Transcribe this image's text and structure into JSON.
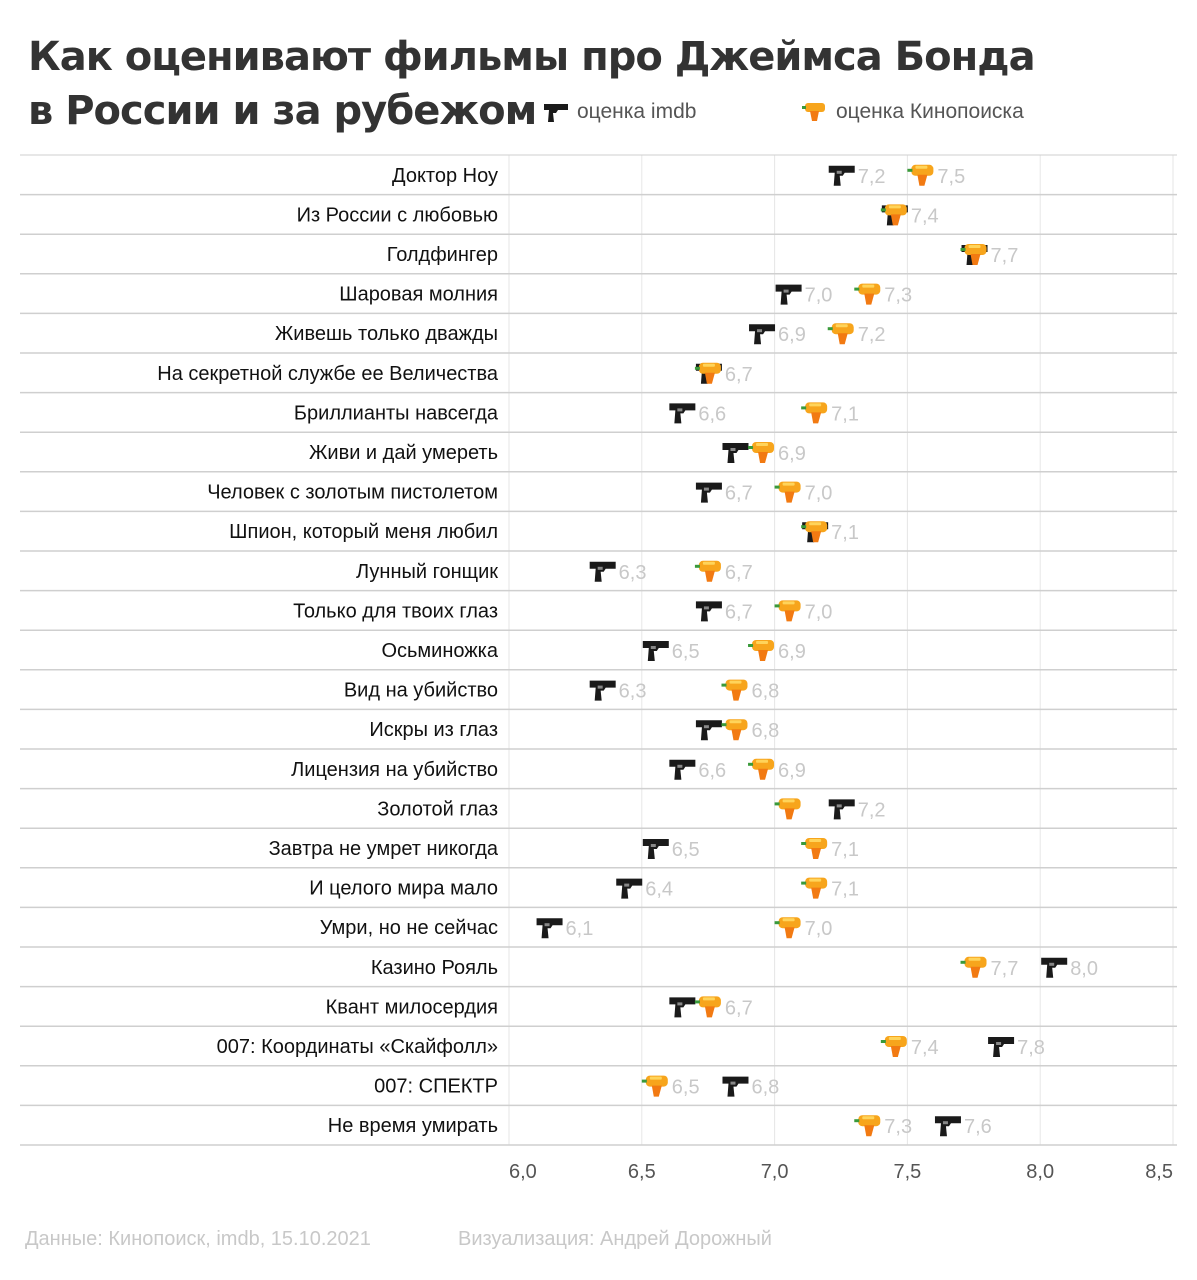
{
  "title_line1": "Как оценивают фильмы про Джеймса Бонда",
  "title_line2": "в России и за рубежом",
  "legend": {
    "imdb": "оценка imdb",
    "kp": "оценка Кинопоиска"
  },
  "footer": {
    "source": "Данные:  Кинопоиск, imdb, 15.10.2021",
    "author": "Визуализация: Андрей Дорожный"
  },
  "colors": {
    "imdb": "#1a1a1a",
    "kp": "#f7a51c",
    "label": "#c8c8c8",
    "grid": "#e6e6e6",
    "rowline": "#cfcfcf"
  },
  "chart_data": {
    "type": "dot",
    "xlim": [
      6.0,
      8.5
    ],
    "ticks": [
      "6,0",
      "6,5",
      "7,0",
      "7,5",
      "8,0",
      "8,5"
    ],
    "tick_values": [
      6.0,
      6.5,
      7.0,
      7.5,
      8.0,
      8.5
    ],
    "grid": true,
    "series": [
      {
        "name": "оценка imdb",
        "key": "imdb",
        "icon": "pistol-icon"
      },
      {
        "name": "оценка Кинопоиска",
        "key": "kp",
        "icon": "water-pistol-icon"
      }
    ],
    "categories": [
      "Доктор Ноу",
      "Из России с любовью",
      "Голдфингер",
      "Шаровая молния",
      "Живешь только дважды",
      "На секретной службе ее Величества",
      "Бриллианты навсегда",
      "Живи и дай умереть",
      "Человек с золотым пистолетом",
      "Шпион, который меня любил",
      "Лунный гонщик",
      "Только для твоих глаз",
      "Осьминожка",
      "Вид на убийство",
      "Искры из глаз",
      "Лицензия на убийство",
      "Золотой глаз",
      "Завтра не умрет никогда",
      "И целого мира мало",
      "Умри, но не сейчас",
      "Казино Рояль",
      "Квант милосердия",
      "007: Координаты «Скайфолл»",
      "007: СПЕКТР",
      "Не время умирать"
    ],
    "imdb": [
      7.2,
      7.4,
      7.7,
      7.0,
      6.9,
      6.7,
      6.6,
      6.8,
      6.7,
      7.1,
      6.3,
      6.7,
      6.5,
      6.3,
      6.7,
      6.6,
      7.2,
      6.5,
      6.4,
      6.1,
      8.0,
      6.6,
      7.8,
      6.8,
      7.6
    ],
    "kp": [
      7.5,
      7.4,
      7.7,
      7.3,
      7.2,
      6.7,
      7.1,
      6.9,
      7.0,
      7.1,
      6.7,
      7.0,
      6.9,
      6.8,
      6.8,
      6.9,
      7.0,
      7.1,
      7.1,
      7.0,
      7.7,
      6.7,
      7.4,
      6.5,
      7.3
    ]
  }
}
